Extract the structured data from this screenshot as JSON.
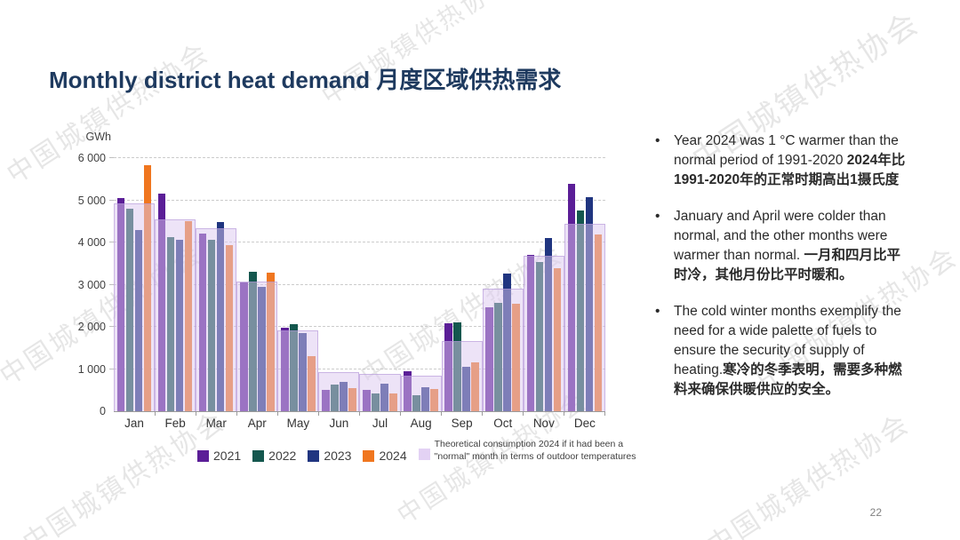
{
  "title": "Monthly district heat demand 月度区域供热需求",
  "watermark": "中国城镇供热协会",
  "page_number": "22",
  "chart_data": {
    "type": "bar",
    "title": "Monthly district heat demand",
    "ylabel": "GWh",
    "xlabel": "",
    "ylim": [
      0,
      6000
    ],
    "ytick_step": 1000,
    "yticks": [
      "0",
      "1 000",
      "2 000",
      "3 000",
      "4 000",
      "5 000",
      "6 000"
    ],
    "grid": true,
    "legend_position": "bottom",
    "categories": [
      "Jan",
      "Feb",
      "Mar",
      "Apr",
      "May",
      "Jun",
      "Jul",
      "Aug",
      "Sep",
      "Oct",
      "Nov",
      "Dec"
    ],
    "series": [
      {
        "name": "2021",
        "color": "#5b1e97",
        "values": [
          5050,
          5150,
          4220,
          3050,
          1980,
          510,
          500,
          950,
          2080,
          2460,
          3700,
          5400
        ]
      },
      {
        "name": "2022",
        "color": "#14574e",
        "values": [
          4790,
          4120,
          4060,
          3300,
          2070,
          630,
          420,
          370,
          2110,
          2570,
          3540,
          4760
        ]
      },
      {
        "name": "2023",
        "color": "#203580",
        "values": [
          4300,
          4060,
          4480,
          2940,
          1850,
          700,
          660,
          570,
          1050,
          3270,
          4100,
          5070
        ]
      },
      {
        "name": "2024",
        "color": "#f0761f",
        "values": [
          5830,
          4500,
          3930,
          3280,
          1300,
          550,
          420,
          520,
          1150,
          2540,
          3400,
          4200
        ]
      }
    ],
    "theoretical": {
      "name": "Theoretical consumption 2024 if it had been a \"normal\" month in terms of outdoor temperatures",
      "color": "rgba(220,200,240,0.5)",
      "swatch_color": "#e3d2f4",
      "values": [
        4930,
        4550,
        4330,
        3080,
        1920,
        930,
        880,
        840,
        1660,
        2910,
        3680,
        4450
      ]
    }
  },
  "bullets": [
    {
      "en": "Year 2024 was 1 °C warmer than the normal period of 1991-2020 ",
      "zh": "2024年比1991-2020年的正常时期高出1摄氏度"
    },
    {
      "en": "January and April were colder than normal, and the other months were warmer than normal. ",
      "zh": "一月和四月比平时冷，其他月份比平时暖和。"
    },
    {
      "en": "The cold winter months exemplify the need for a wide palette of fuels to ensure the security of supply of heating.",
      "zh": "寒冷的冬季表明，需要多种燃料来确保供暖供应的安全。"
    }
  ]
}
